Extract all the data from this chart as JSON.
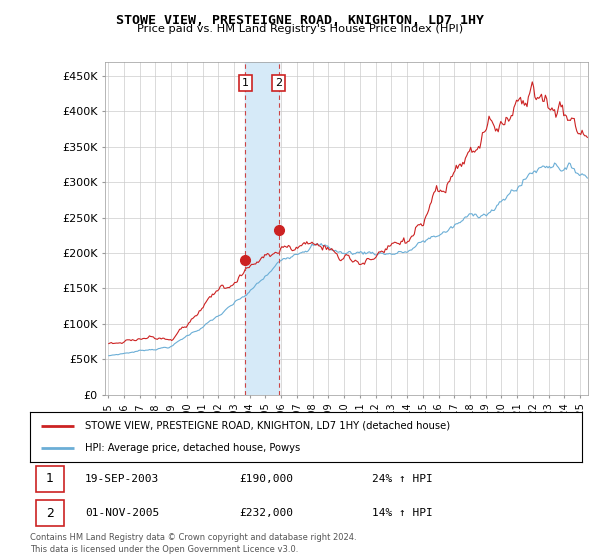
{
  "title": "STOWE VIEW, PRESTEIGNE ROAD, KNIGHTON, LD7 1HY",
  "subtitle": "Price paid vs. HM Land Registry's House Price Index (HPI)",
  "legend_line1": "STOWE VIEW, PRESTEIGNE ROAD, KNIGHTON, LD7 1HY (detached house)",
  "legend_line2": "HPI: Average price, detached house, Powys",
  "transaction1_date": "19-SEP-2003",
  "transaction1_price": "£190,000",
  "transaction1_hpi": "24% ↑ HPI",
  "transaction2_date": "01-NOV-2005",
  "transaction2_price": "£232,000",
  "transaction2_hpi": "14% ↑ HPI",
  "footer": "Contains HM Land Registry data © Crown copyright and database right 2024.\nThis data is licensed under the Open Government Licence v3.0.",
  "hpi_color": "#6baed6",
  "price_color": "#cc2222",
  "shaded_color": "#d6eaf8",
  "marker1_x": 2003.72,
  "marker1_y": 190000,
  "marker2_x": 2005.83,
  "marker2_y": 232000,
  "vline1_x": 2003.72,
  "vline2_x": 2005.83,
  "ylim": [
    0,
    470000
  ],
  "xlim_start": 1994.8,
  "xlim_end": 2025.5,
  "yticks": [
    0,
    50000,
    100000,
    150000,
    200000,
    250000,
    300000,
    350000,
    400000,
    450000
  ],
  "ytick_labels": [
    "£0",
    "£50K",
    "£100K",
    "£150K",
    "£200K",
    "£250K",
    "£300K",
    "£350K",
    "£400K",
    "£450K"
  ]
}
